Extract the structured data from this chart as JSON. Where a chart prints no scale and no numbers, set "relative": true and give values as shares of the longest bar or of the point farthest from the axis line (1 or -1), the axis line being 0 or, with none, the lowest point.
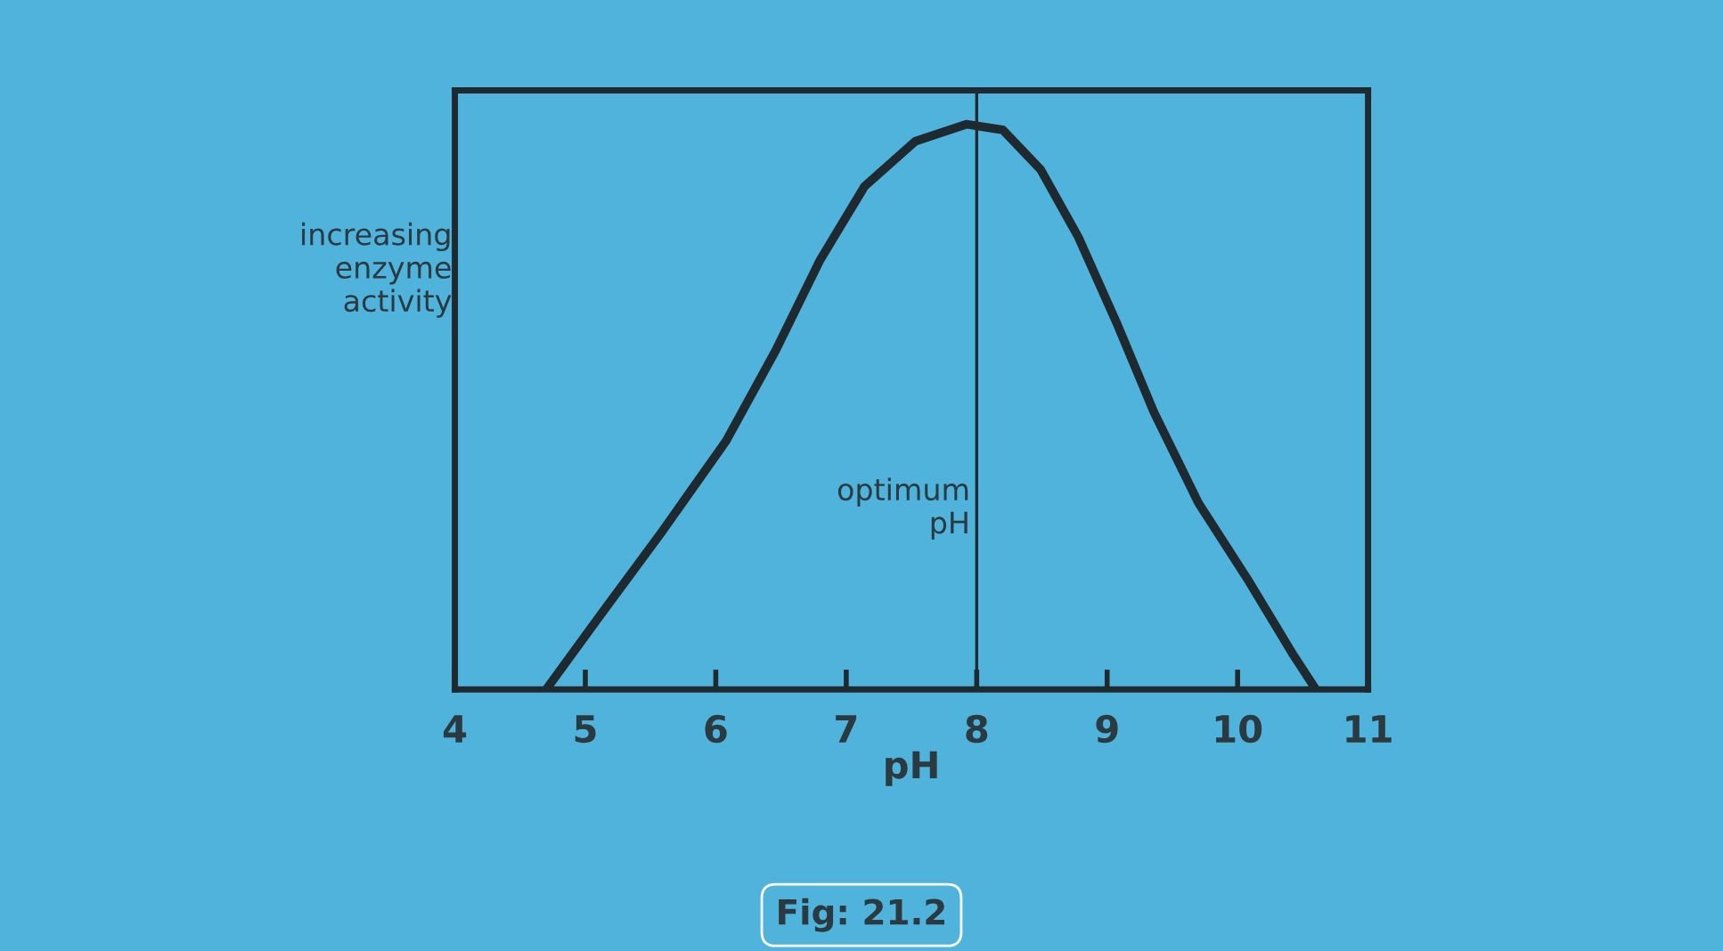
{
  "chart_data": {
    "type": "line",
    "relative": true,
    "xlabel": "pH",
    "ylabel": "increasing\nenzyme\nactivity",
    "x": [
      4.7,
      5.11,
      5.59,
      6.08,
      6.46,
      6.8,
      7.14,
      7.53,
      7.92,
      8.2,
      8.49,
      8.78,
      9.07,
      9.36,
      9.7,
      10.09,
      10.43,
      10.6
    ],
    "series": [
      {
        "color": "#1e2a30",
        "values": [
          0,
          0.13,
          0.28,
          0.44,
          0.6,
          0.76,
          0.89,
          0.97,
          1.0,
          0.99,
          0.92,
          0.8,
          0.65,
          0.49,
          0.33,
          0.19,
          0.06,
          0
        ]
      }
    ],
    "xlim": [
      4,
      11
    ],
    "xticks": [
      4,
      5,
      6,
      7,
      8,
      9,
      10,
      11
    ],
    "ref_lines": [
      {
        "axis": "x",
        "value": 8,
        "label": "optimum\npH",
        "color": "#1e2a30"
      }
    ],
    "annotations": [
      "Fig: 21.2"
    ],
    "grid": false,
    "legend": false,
    "marker": "none",
    "line_style": "solid"
  }
}
